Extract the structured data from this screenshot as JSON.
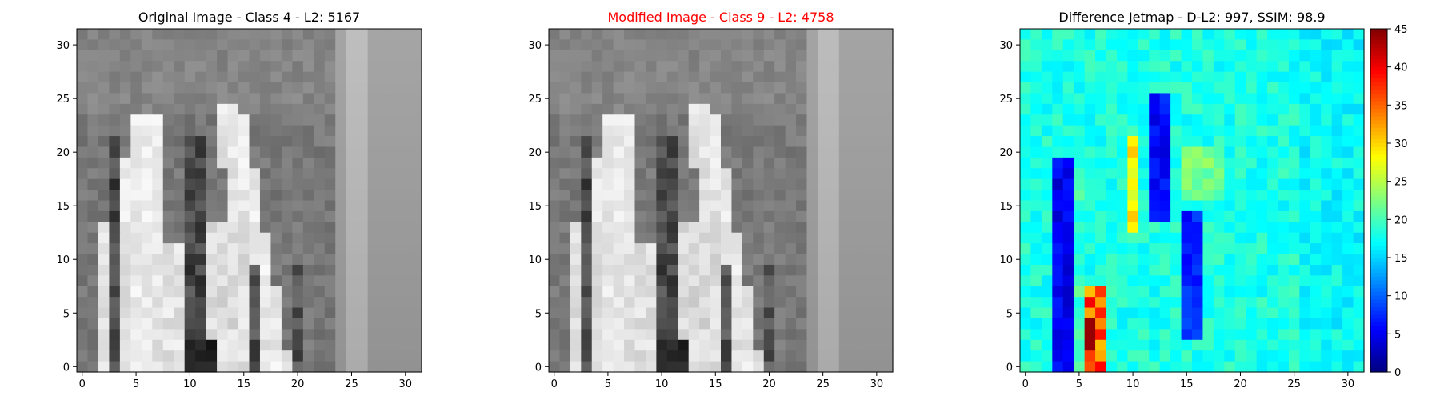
{
  "figure": {
    "panels": [
      {
        "title": "Original Image - Class 4 - L2: 5167",
        "title_color": "#000000",
        "kind": "image",
        "variant": "original"
      },
      {
        "title": "Modified Image - Class 9 - L2: 4758",
        "title_color": "#ff0000",
        "kind": "image",
        "variant": "modified"
      },
      {
        "title": "Difference Jetmap - D-L2: 997, SSIM: 98.9",
        "title_color": "#000000",
        "kind": "heatmap"
      }
    ]
  },
  "chart_data": [
    {
      "type": "heatmap",
      "title": "Original Image - Class 4 - L2: 5167",
      "colormap": "gray",
      "image_size": [
        32,
        32
      ],
      "xlim": [
        -0.5,
        31.5
      ],
      "ylim": [
        31.5,
        -0.5
      ],
      "xticks": [
        0,
        5,
        10,
        15,
        20,
        25,
        30
      ],
      "yticks": [
        0,
        5,
        10,
        15,
        20,
        25,
        30
      ]
    },
    {
      "type": "heatmap",
      "title": "Modified Image - Class 9 - L2: 4758",
      "colormap": "gray",
      "image_size": [
        32,
        32
      ],
      "xlim": [
        -0.5,
        31.5
      ],
      "ylim": [
        31.5,
        -0.5
      ],
      "xticks": [
        0,
        5,
        10,
        15,
        20,
        25,
        30
      ],
      "yticks": [
        0,
        5,
        10,
        15,
        20,
        25,
        30
      ]
    },
    {
      "type": "heatmap",
      "title": "Difference Jetmap - D-L2: 997, SSIM: 98.9",
      "colormap": "jet",
      "image_size": [
        32,
        32
      ],
      "xlim": [
        -0.5,
        31.5
      ],
      "ylim": [
        31.5,
        -0.5
      ],
      "xticks": [
        0,
        5,
        10,
        15,
        20,
        25,
        30
      ],
      "yticks": [
        0,
        5,
        10,
        15,
        20,
        25,
        30
      ],
      "colorbar": {
        "min": 0,
        "max": 45,
        "ticks": [
          0,
          5,
          10,
          15,
          20,
          25,
          30,
          35,
          40,
          45
        ]
      }
    }
  ]
}
